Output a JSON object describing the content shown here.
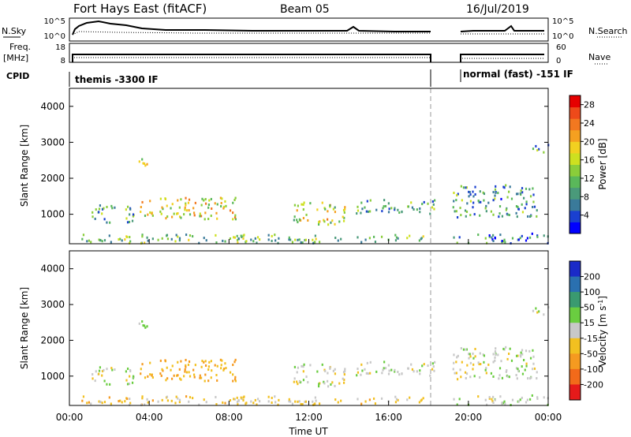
{
  "header": {
    "station": "Fort Hays East (fitACF)",
    "beam": "Beam 05",
    "date": "16/Jul/2019"
  },
  "top_panels": {
    "nsky_label": "N.Sky",
    "nsky_ticks": [
      "10^5",
      "10^0"
    ],
    "nsearch_label": "N.Search",
    "nsearch_ticks": [
      "10^5",
      "10^0"
    ],
    "freq_label": "Freq.",
    "freq_unit": "[MHz]",
    "freq_ticks": [
      "18",
      "8"
    ],
    "nave_label": "Nave",
    "nave_ticks": [
      "60",
      "0"
    ],
    "cpid_label": "CPID",
    "cpid_segments": [
      {
        "label": "themis -3300 IF",
        "start_hour": 0.0,
        "end_hour": 18.3
      },
      {
        "label": "normal (fast) -151 IF",
        "start_hour": 19.2,
        "end_hour": 24.0
      }
    ]
  },
  "power_colorbar": {
    "title": "Power [dB]",
    "ticks": [
      "28",
      "24",
      "20",
      "16",
      "12",
      "8",
      "4"
    ],
    "colors": [
      "#0000ff",
      "#1a40d0",
      "#3a7a9a",
      "#4a9a7a",
      "#5ab85a",
      "#8acd3a",
      "#cde020",
      "#f2d020",
      "#f5a020",
      "#f27820",
      "#ee4a1a",
      "#e60000"
    ]
  },
  "velocity_colorbar": {
    "title": "Velocity [m s",
    "title_sup": "-1",
    "title_end": "]",
    "ticks": [
      "200",
      "100",
      "50",
      "15",
      "-15",
      "-50",
      "-100",
      "-200"
    ],
    "colors": [
      "#1a2ac8",
      "#2a70b0",
      "#3a9a70",
      "#6acd40",
      "#c8c8c8",
      "#f2c020",
      "#f59a20",
      "#f26a1a",
      "#e61a1a"
    ]
  },
  "axes": {
    "ylabel": "Slant Range [km]",
    "xlabel": "Time UT",
    "x_ticks": [
      "00:00",
      "04:00",
      "08:00",
      "12:00",
      "16:00",
      "20:00",
      "00:00"
    ],
    "y_ticks": [
      "1000",
      "2000",
      "3000",
      "4000"
    ]
  },
  "chart_data": {
    "type": "heatmap",
    "x_range_hours": [
      0,
      24
    ],
    "y_range_km": [
      180,
      4500
    ],
    "data_gap_hours": [
      18.3,
      19.2
    ],
    "panels": [
      "Power [dB]",
      "Velocity [m s-1]"
    ],
    "echo_regions": [
      {
        "t0": 0.6,
        "t1": 18.3,
        "r0": 180,
        "r1": 420,
        "power_db": 12,
        "velocity": -25
      },
      {
        "t0": 3.4,
        "t1": 8.4,
        "r0": 850,
        "r1": 1450,
        "power_db": 18,
        "velocity": -45
      },
      {
        "t0": 1.1,
        "t1": 3.2,
        "r0": 750,
        "r1": 1250,
        "power_db": 10,
        "velocity": 5
      },
      {
        "t0": 3.4,
        "t1": 3.9,
        "r0": 2300,
        "r1": 2700,
        "power_db": 14,
        "velocity": 10
      },
      {
        "t0": 11.2,
        "t1": 13.8,
        "r0": 700,
        "r1": 1350,
        "power_db": 16,
        "velocity": 0
      },
      {
        "t0": 14.3,
        "t1": 18.3,
        "r0": 1000,
        "r1": 1400,
        "power_db": 10,
        "velocity": 5
      },
      {
        "t0": 19.2,
        "t1": 23.4,
        "r0": 900,
        "r1": 1800,
        "power_db": 9,
        "velocity": 5
      },
      {
        "t0": 23.2,
        "t1": 24.0,
        "r0": 2700,
        "r1": 2950,
        "power_db": 10,
        "velocity": 5
      },
      {
        "t0": 19.2,
        "t1": 24.0,
        "r0": 180,
        "r1": 450,
        "power_db": 7,
        "velocity": 10
      }
    ]
  }
}
